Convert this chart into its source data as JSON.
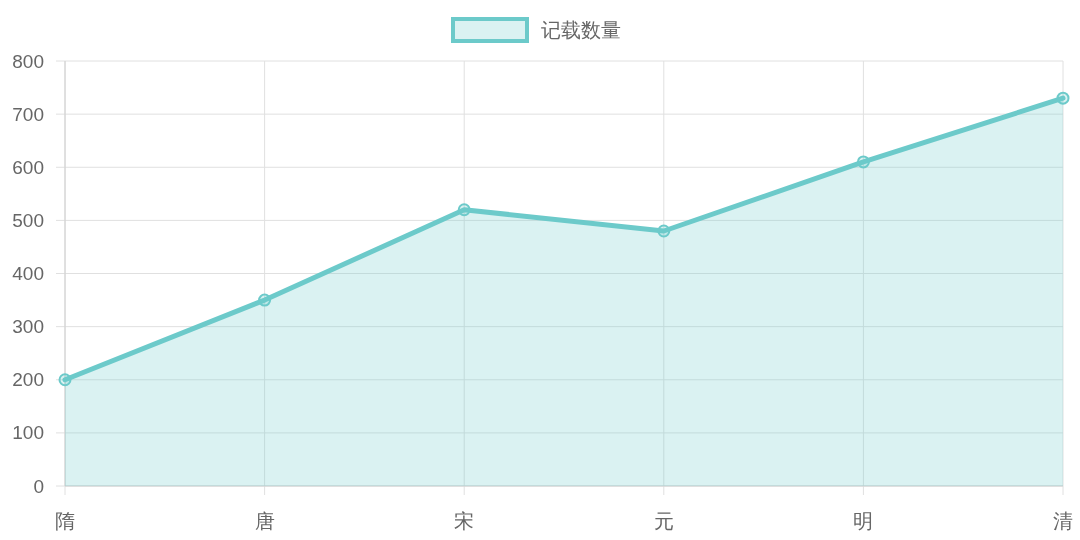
{
  "chart_data": {
    "type": "area",
    "categories": [
      "隋",
      "唐",
      "宋",
      "元",
      "明",
      "清"
    ],
    "series": [
      {
        "name": "记载数量",
        "color": "#6ccaca",
        "values": [
          200,
          350,
          520,
          480,
          610,
          730
        ]
      }
    ],
    "ylim": [
      0,
      800
    ],
    "yticks": [
      0,
      100,
      200,
      300,
      400,
      500,
      600,
      700,
      800
    ],
    "grid": true,
    "legend": "top",
    "marker": "circle"
  }
}
